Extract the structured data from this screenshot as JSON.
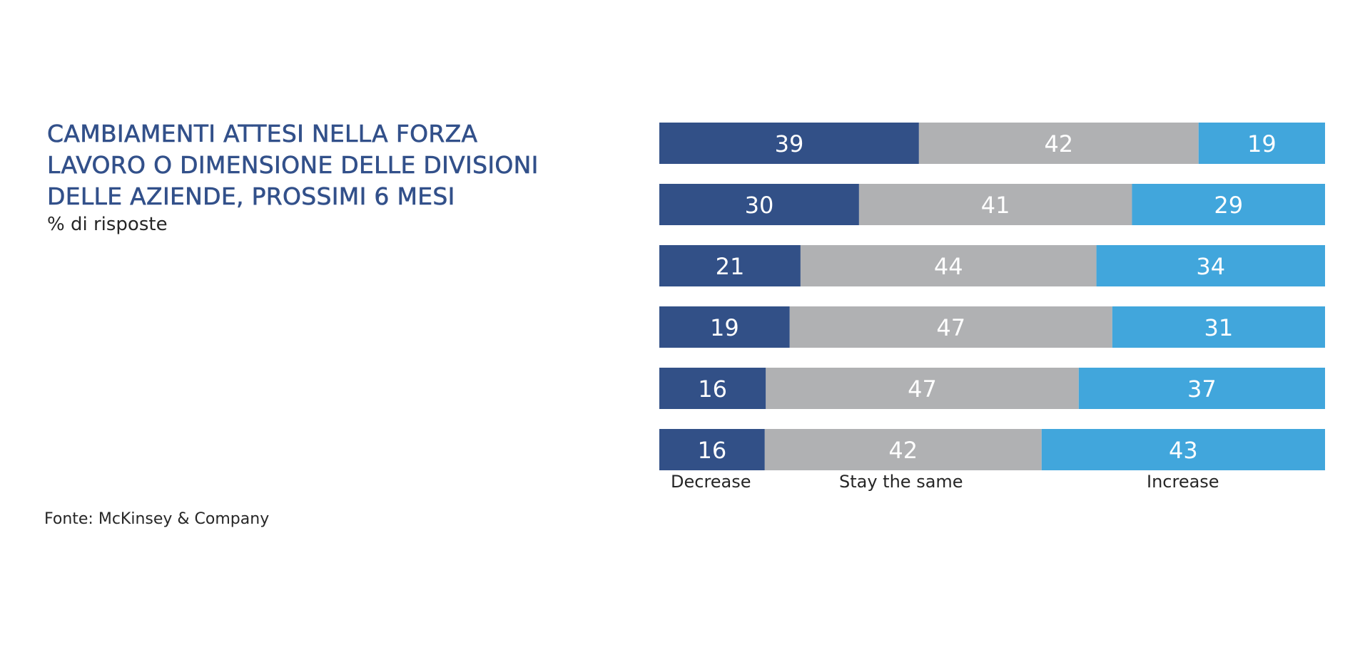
{
  "header": {
    "title": "CAMBIAMENTI ATTESI NELLA FORZA\nLAVORO O DIMENSIONE DELLE DIVISIONI\nDELLE AZIENDE, PROSSIMI 6 MESI",
    "subtitle": "% di risposte"
  },
  "source": "Fonte: McKinsey & Company",
  "chart_data": {
    "type": "bar",
    "orientation": "horizontal",
    "stacked": true,
    "categories": [
      "",
      "",
      "",
      "",
      "",
      ""
    ],
    "series": [
      {
        "name": "Decrease",
        "values": [
          39,
          30,
          21,
          19,
          16,
          16
        ],
        "color": "#325087"
      },
      {
        "name": "Stay the same",
        "values": [
          42,
          41,
          44,
          47,
          47,
          42
        ],
        "color": "#b0b1b3"
      },
      {
        "name": "Increase",
        "values": [
          19,
          29,
          34,
          31,
          37,
          43
        ],
        "color": "#41a6dc"
      }
    ],
    "legend_position": "bottom",
    "grid": false,
    "data_labels": true
  }
}
